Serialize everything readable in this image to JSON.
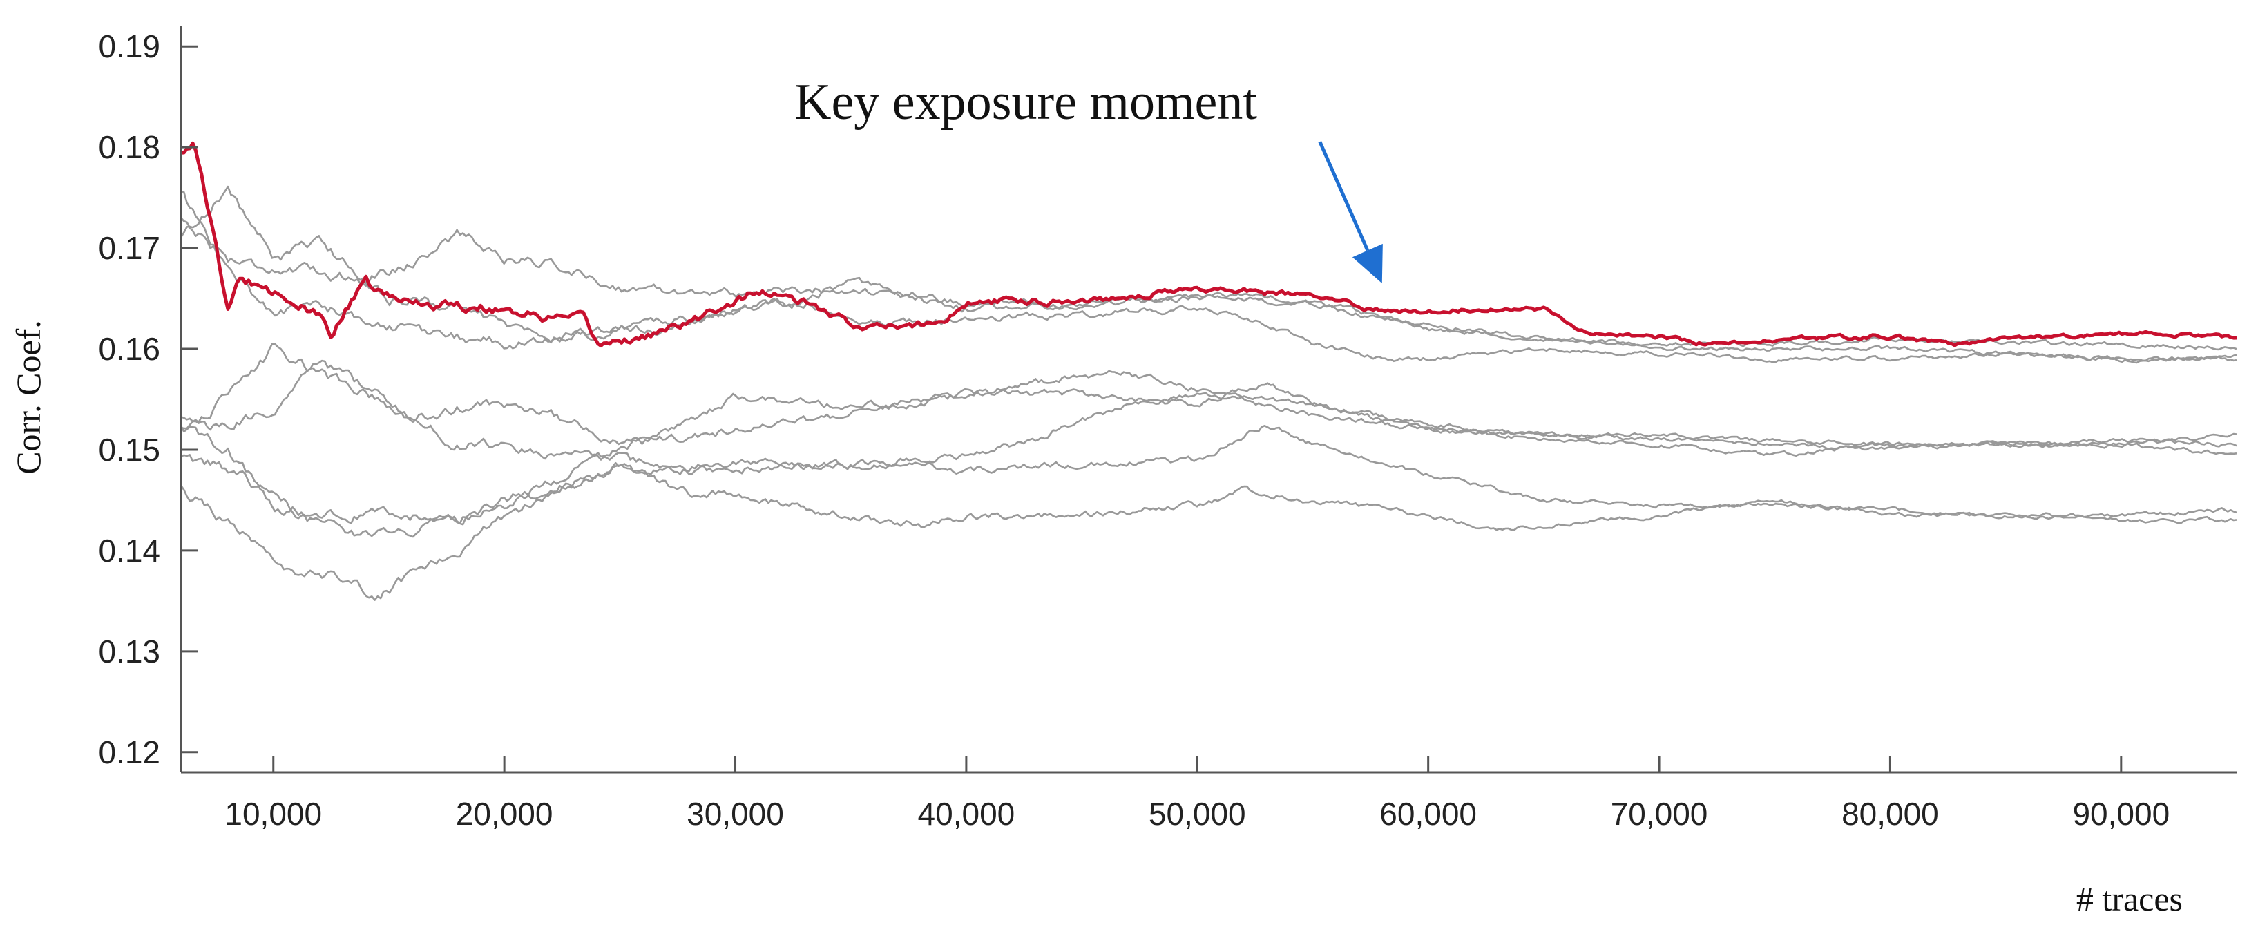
{
  "chart_data": {
    "type": "line",
    "title": "",
    "xlabel": "# traces",
    "ylabel": "Corr. Coef.",
    "xlim": [
      6000,
      95000
    ],
    "ylim": [
      0.118,
      0.192
    ],
    "xticks": [
      10000,
      20000,
      30000,
      40000,
      50000,
      60000,
      70000,
      80000,
      90000
    ],
    "xtick_labels": [
      "10,000",
      "20,000",
      "30,000",
      "40,000",
      "50,000",
      "60,000",
      "70,000",
      "80,000",
      "90,000"
    ],
    "yticks": [
      0.12,
      0.13,
      0.14,
      0.15,
      0.16,
      0.17,
      0.18,
      0.19
    ],
    "ytick_labels": [
      "0.12",
      "0.13",
      "0.14",
      "0.15",
      "0.16",
      "0.17",
      "0.18",
      "0.19"
    ],
    "grid": false,
    "colors": {
      "highlight": "#c8102e",
      "other": "#999999",
      "arrow": "#1f6fd1",
      "axis": "#555555"
    },
    "annotation": {
      "text": "Key exposure moment",
      "arrow_tip": [
        58000,
        0.1665
      ]
    },
    "series": [
      {
        "highlight": true,
        "x": [
          6000,
          6500,
          7000,
          7500,
          8000,
          8500,
          9000,
          9500,
          10000,
          11000,
          12000,
          12500,
          13000,
          14000,
          15000,
          17000,
          20000,
          22000,
          23500,
          24000,
          26000,
          28000,
          30000,
          31000,
          33000,
          35000,
          37000,
          39000,
          40000,
          42000,
          45000,
          48000,
          50000,
          52000,
          55000,
          58000,
          60000,
          63000,
          65000,
          67000,
          70000,
          72000,
          75000,
          78000,
          80000,
          83000,
          85000,
          88000,
          90000,
          92000,
          95000
        ],
        "y": [
          0.1795,
          0.1808,
          0.176,
          0.17,
          0.164,
          0.1665,
          0.1665,
          0.167,
          0.166,
          0.1645,
          0.163,
          0.1615,
          0.1635,
          0.1665,
          0.165,
          0.1645,
          0.164,
          0.163,
          0.1628,
          0.1605,
          0.1612,
          0.1625,
          0.1648,
          0.1658,
          0.1645,
          0.1625,
          0.162,
          0.1628,
          0.1645,
          0.1648,
          0.1648,
          0.1655,
          0.166,
          0.1658,
          0.1652,
          0.1638,
          0.1638,
          0.164,
          0.164,
          0.1615,
          0.1612,
          0.1605,
          0.1608,
          0.1612,
          0.1612,
          0.1605,
          0.161,
          0.1613,
          0.1615,
          0.1615,
          0.161
        ]
      },
      {
        "highlight": false,
        "x": [
          6000,
          8000,
          10000,
          12000,
          14000,
          16000,
          18000,
          20000,
          22000,
          25000,
          30000,
          35000,
          40000,
          45000,
          50000,
          55000,
          60000,
          65000,
          70000,
          75000,
          80000,
          85000,
          90000,
          95000
        ],
        "y": [
          0.173,
          0.169,
          0.168,
          0.1675,
          0.167,
          0.1685,
          0.1715,
          0.169,
          0.1685,
          0.166,
          0.1655,
          0.166,
          0.164,
          0.1645,
          0.165,
          0.1645,
          0.162,
          0.161,
          0.1605,
          0.1605,
          0.161,
          0.1605,
          0.1605,
          0.16
        ]
      },
      {
        "highlight": false,
        "x": [
          6000,
          8000,
          10000,
          12000,
          15000,
          18000,
          20000,
          22000,
          25000,
          28000,
          30000,
          33000,
          35000,
          38000,
          40000,
          45000,
          50000,
          53000,
          55000,
          58000,
          60000,
          65000,
          70000,
          75000,
          80000,
          85000,
          90000,
          95000
        ],
        "y": [
          0.171,
          0.176,
          0.169,
          0.1705,
          0.165,
          0.164,
          0.1625,
          0.161,
          0.162,
          0.162,
          0.164,
          0.1645,
          0.163,
          0.1625,
          0.163,
          0.1635,
          0.164,
          0.1625,
          0.1605,
          0.159,
          0.159,
          0.16,
          0.1595,
          0.159,
          0.159,
          0.1595,
          0.159,
          0.1592
        ]
      },
      {
        "highlight": false,
        "x": [
          6000,
          8000,
          10000,
          12000,
          14000,
          17000,
          20000,
          24000,
          26000,
          28000,
          30000,
          33000,
          35000,
          40000,
          45000,
          50000,
          52000,
          55000,
          60000,
          65000,
          70000,
          75000,
          80000,
          85000,
          90000,
          95000
        ],
        "y": [
          0.1755,
          0.168,
          0.1635,
          0.1645,
          0.1625,
          0.1615,
          0.1605,
          0.1615,
          0.1625,
          0.163,
          0.164,
          0.165,
          0.1665,
          0.1645,
          0.1645,
          0.165,
          0.1655,
          0.1645,
          0.1625,
          0.161,
          0.16,
          0.16,
          0.16,
          0.1595,
          0.159,
          0.159
        ]
      },
      {
        "highlight": false,
        "x": [
          6000,
          8000,
          10000,
          12000,
          14000,
          16000,
          18000,
          20000,
          22000,
          25000,
          28000,
          30000,
          35000,
          40000,
          43000,
          45000,
          47000,
          50000,
          55000,
          60000,
          65000,
          70000,
          75000,
          80000,
          85000,
          90000,
          95000
        ],
        "y": [
          0.152,
          0.155,
          0.16,
          0.1575,
          0.1555,
          0.153,
          0.1505,
          0.1505,
          0.1495,
          0.149,
          0.148,
          0.148,
          0.1485,
          0.1495,
          0.151,
          0.153,
          0.1545,
          0.1555,
          0.1545,
          0.152,
          0.151,
          0.1505,
          0.1495,
          0.1505,
          0.1505,
          0.151,
          0.1505
        ]
      },
      {
        "highlight": false,
        "x": [
          6000,
          8000,
          10000,
          12000,
          14000,
          16000,
          18000,
          20000,
          22000,
          25000,
          28000,
          30000,
          35000,
          40000,
          45000,
          47000,
          50000,
          55000,
          60000,
          65000,
          70000,
          75000,
          80000,
          85000,
          90000,
          95000
        ],
        "y": [
          0.153,
          0.152,
          0.154,
          0.159,
          0.156,
          0.153,
          0.154,
          0.1545,
          0.1535,
          0.1505,
          0.151,
          0.152,
          0.1535,
          0.1555,
          0.1575,
          0.1575,
          0.156,
          0.1535,
          0.152,
          0.1515,
          0.151,
          0.151,
          0.1505,
          0.1505,
          0.1505,
          0.1495
        ]
      },
      {
        "highlight": false,
        "x": [
          6000,
          8000,
          10000,
          12000,
          14000,
          16000,
          18000,
          20000,
          22000,
          25000,
          28000,
          30000,
          35000,
          40000,
          45000,
          50000,
          53000,
          55000,
          60000,
          65000,
          70000,
          75000,
          80000,
          85000,
          90000,
          95000
        ],
        "y": [
          0.149,
          0.148,
          0.1455,
          0.1425,
          0.1415,
          0.142,
          0.143,
          0.145,
          0.1465,
          0.15,
          0.1525,
          0.1555,
          0.154,
          0.1555,
          0.1555,
          0.1545,
          0.1565,
          0.1545,
          0.1525,
          0.1515,
          0.1515,
          0.1505,
          0.15,
          0.1505,
          0.1505,
          0.1515
        ]
      },
      {
        "highlight": false,
        "x": [
          6000,
          8000,
          10000,
          12000,
          15000,
          18000,
          20000,
          22000,
          25000,
          28000,
          30000,
          35000,
          40000,
          45000,
          50000,
          53000,
          55000,
          60000,
          65000,
          70000,
          75000,
          80000,
          85000,
          90000,
          95000
        ],
        "y": [
          0.152,
          0.15,
          0.1445,
          0.1435,
          0.1435,
          0.1435,
          0.1445,
          0.146,
          0.1485,
          0.148,
          0.1485,
          0.1485,
          0.148,
          0.1485,
          0.149,
          0.1525,
          0.1505,
          0.1475,
          0.145,
          0.1445,
          0.1445,
          0.144,
          0.1435,
          0.1435,
          0.144
        ]
      },
      {
        "highlight": false,
        "x": [
          6000,
          8000,
          10000,
          11000,
          13000,
          14500,
          16000,
          18000,
          20000,
          22000,
          25000,
          28000,
          30000,
          35000,
          38000,
          40000,
          45000,
          50000,
          52000,
          55000,
          60000,
          63000,
          65000,
          70000,
          75000,
          80000,
          85000,
          90000,
          95000
        ],
        "y": [
          0.146,
          0.143,
          0.1385,
          0.137,
          0.1375,
          0.1355,
          0.1375,
          0.14,
          0.1435,
          0.1455,
          0.1485,
          0.1455,
          0.1455,
          0.1435,
          0.1425,
          0.1435,
          0.1435,
          0.1445,
          0.146,
          0.145,
          0.1435,
          0.142,
          0.1425,
          0.1435,
          0.145,
          0.1435,
          0.1435,
          0.143,
          0.143
        ]
      }
    ]
  }
}
